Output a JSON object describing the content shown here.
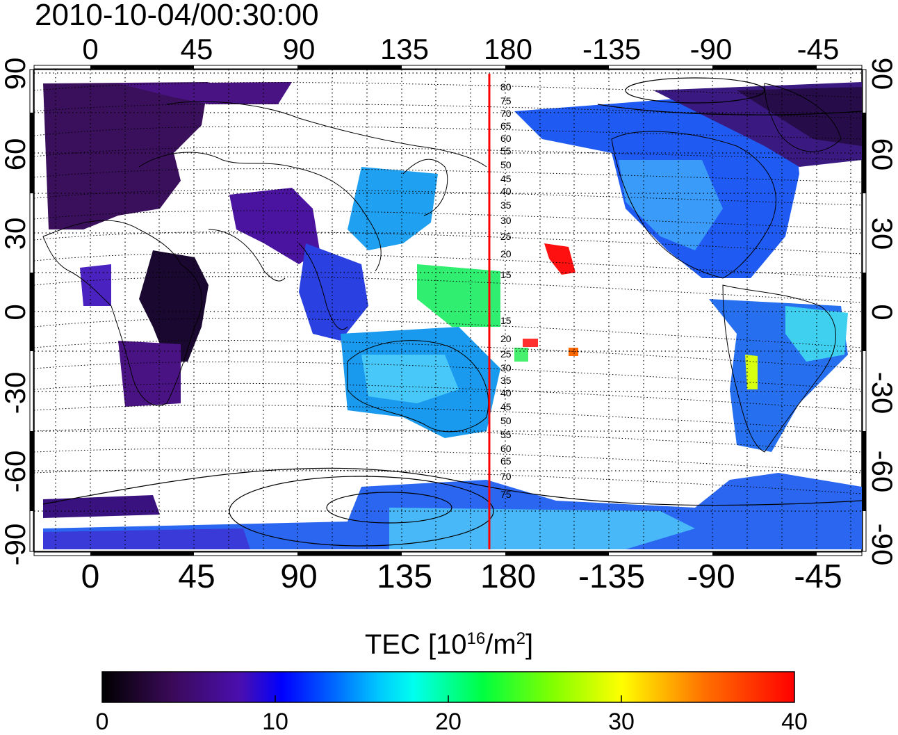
{
  "title": "2010-10-04/00:30:00",
  "map": {
    "projection": "equirectangular",
    "central_longitude": 165,
    "lon_range": [
      -20,
      340
    ],
    "lat_range": [
      -90,
      90
    ],
    "top_lon_ticks": [
      "0",
      "45",
      "90",
      "135",
      "180",
      "-135",
      "-90",
      "-45"
    ],
    "bottom_lon_ticks": [
      "0",
      "45",
      "90",
      "135",
      "180",
      "-135",
      "-90",
      "-45"
    ],
    "lat_ticks": [
      "90",
      "60",
      "30",
      "0",
      "-30",
      "-60",
      "-90"
    ],
    "meridian_line": {
      "longitude": 172,
      "color": "#ff0000"
    },
    "contour_labels": [
      "80",
      "75",
      "70",
      "65",
      "60",
      "55",
      "50",
      "45",
      "40",
      "35",
      "30",
      "25",
      "20",
      "15",
      "15",
      "20",
      "25",
      "30",
      "35",
      "40",
      "45",
      "50",
      "55",
      "60",
      "65",
      "70",
      "75"
    ],
    "grid": "dotted",
    "coastlines": true
  },
  "colorbar": {
    "label_main": "TEC  [10",
    "label_exp": "16",
    "label_mid": "/m",
    "label_exp2": "2",
    "label_end": "]",
    "min": 0,
    "max": 40,
    "ticks": [
      "0",
      "10",
      "20",
      "30",
      "40"
    ],
    "colormap_stops": [
      "#000000",
      "#3a0a58",
      "#4a0fb0",
      "#0000ff",
      "#0090ff",
      "#00ffff",
      "#00ff60",
      "#40ff00",
      "#ffff00",
      "#ff8000",
      "#ff0000"
    ]
  }
}
